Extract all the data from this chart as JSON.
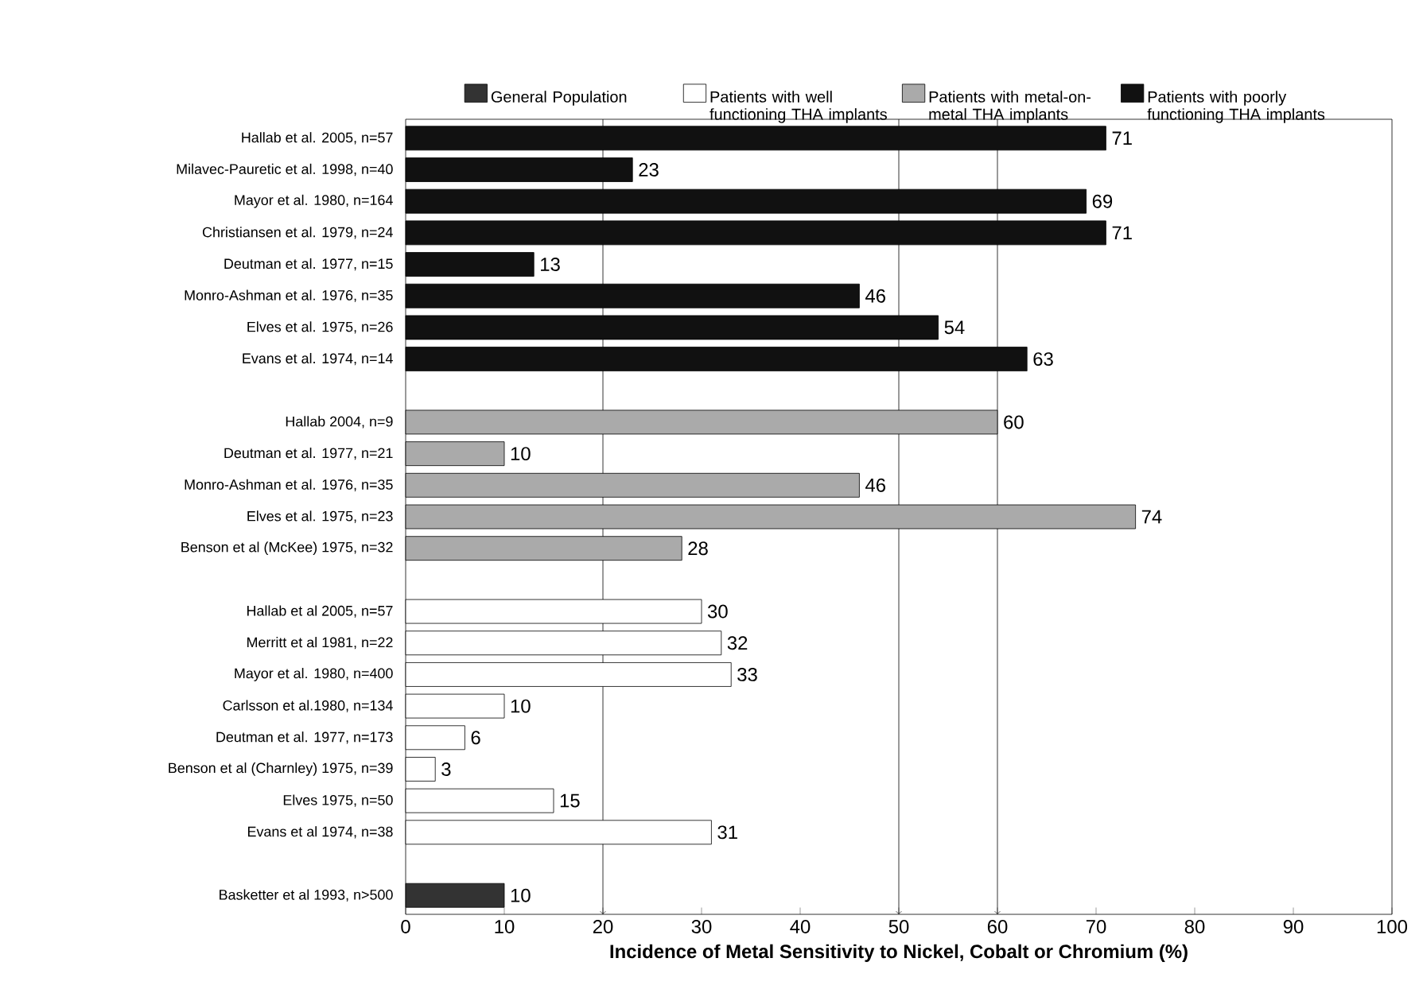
{
  "chart_data": {
    "type": "bar",
    "orientation": "horizontal",
    "xlabel": "Incidence of Metal Sensitivity to Nickel, Cobalt or Chromium (%)",
    "categories": [
      "Hallab et al. 2005, n=57",
      "Milavec-Pauretic et al. 1998, n=40",
      "Mayor et al. 1980, n=164",
      "Christiansen et al. 1979, n=24",
      "Deutman et al. 1977, n=15",
      "Monro-Ashman et al. 1976, n=35",
      "Elves et al. 1975, n=26",
      "Evans et al. 1974, n=14",
      null,
      "Hallab 2004, n=9",
      "Deutman et al. 1977, n=21",
      "Monro-Ashman et al. 1976, n=35",
      "Elves et al. 1975, n=23",
      "Benson et al (McKee) 1975, n=32",
      null,
      "Hallab et al 2005, n=57",
      "Merritt et al 1981, n=22",
      "Mayor et al. 1980, n=400",
      "Carlsson et al.1980, n=134",
      "Deutman et al. 1977, n=173",
      "Benson et al (Charnley) 1975, n=39",
      "Elves 1975, n=50",
      "Evans et al 1974, n=38",
      null,
      "Basketter et al 1993, n>500"
    ],
    "series": [
      {
        "name": "General Population",
        "color": "#333333",
        "values": [
          null,
          null,
          null,
          null,
          null,
          null,
          null,
          null,
          null,
          null,
          null,
          null,
          null,
          null,
          null,
          null,
          null,
          null,
          null,
          null,
          null,
          null,
          null,
          null,
          10
        ]
      },
      {
        "name": "Patients with well functioning THA implants",
        "color": "#ffffff",
        "values": [
          null,
          null,
          null,
          null,
          null,
          null,
          null,
          null,
          null,
          null,
          null,
          null,
          null,
          null,
          null,
          30,
          32,
          33,
          10,
          6,
          3,
          15,
          31,
          null,
          null
        ]
      },
      {
        "name": "Patients with metal-on-metal THA implants",
        "color": "#aaaaaa",
        "values": [
          null,
          null,
          null,
          null,
          null,
          null,
          null,
          null,
          null,
          60,
          10,
          46,
          74,
          28,
          null,
          null,
          null,
          null,
          null,
          null,
          null,
          null,
          null,
          null,
          null
        ]
      },
      {
        "name": "Patients with poorly functioning THA implants",
        "color": "#111111",
        "values": [
          71,
          23,
          69,
          71,
          13,
          46,
          54,
          63,
          null,
          null,
          null,
          null,
          null,
          null,
          null,
          null,
          null,
          null,
          null,
          null,
          null,
          null,
          null,
          null,
          null
        ]
      }
    ],
    "xlim": [
      0,
      100
    ],
    "xticks": [
      0,
      10,
      20,
      30,
      40,
      50,
      60,
      70,
      80,
      90,
      100
    ],
    "ref_lines": [
      {
        "axis": "x",
        "value": 20
      },
      {
        "axis": "x",
        "value": 50
      },
      {
        "axis": "x",
        "value": 60
      }
    ],
    "data_labels": true,
    "legend": "top"
  }
}
